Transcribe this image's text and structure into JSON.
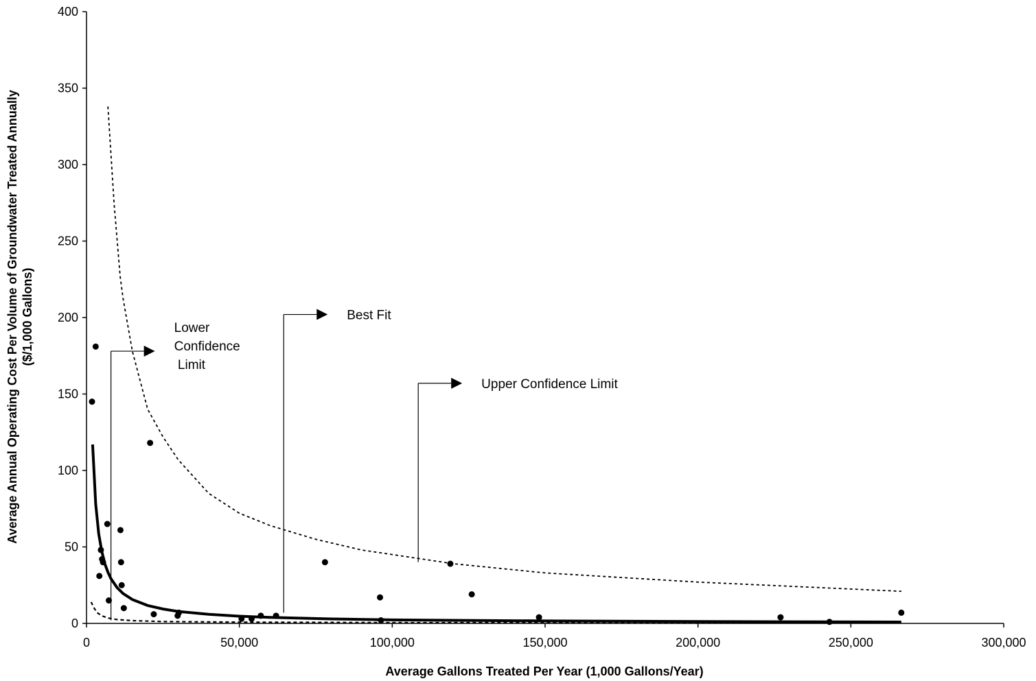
{
  "chart_data": {
    "type": "scatter",
    "title": "",
    "xlabel": "Average Gallons Treated Per Year (1,000 Gallons/Year)",
    "ylabel_line1": "Average Annual Operating Cost Per Volume of Groundwater Treated Annually",
    "ylabel_line2": "($/1,000 Gallons)",
    "xlim": [
      0,
      300000
    ],
    "ylim": [
      0,
      400
    ],
    "x_ticks": [
      0,
      50000,
      100000,
      150000,
      200000,
      250000,
      300000
    ],
    "x_tick_labels": [
      "0",
      "50,000",
      "100,000",
      "150,000",
      "200,000",
      "250,000",
      "300,000"
    ],
    "y_ticks": [
      0,
      50,
      100,
      150,
      200,
      250,
      300,
      350,
      400
    ],
    "y_tick_labels": [
      "0",
      "50",
      "100",
      "150",
      "200",
      "250",
      "300",
      "350",
      "400"
    ],
    "grid": false,
    "legend": "none",
    "points": [
      {
        "x": 1800,
        "y": 145
      },
      {
        "x": 3000,
        "y": 181
      },
      {
        "x": 4200,
        "y": 31
      },
      {
        "x": 4700,
        "y": 48
      },
      {
        "x": 5100,
        "y": 42
      },
      {
        "x": 5400,
        "y": 40
      },
      {
        "x": 6800,
        "y": 65
      },
      {
        "x": 7300,
        "y": 15
      },
      {
        "x": 11100,
        "y": 61
      },
      {
        "x": 11300,
        "y": 40
      },
      {
        "x": 11500,
        "y": 25
      },
      {
        "x": 12200,
        "y": 10
      },
      {
        "x": 20800,
        "y": 118
      },
      {
        "x": 22000,
        "y": 6
      },
      {
        "x": 29800,
        "y": 5
      },
      {
        "x": 30200,
        "y": 7
      },
      {
        "x": 50700,
        "y": 3
      },
      {
        "x": 54000,
        "y": 3
      },
      {
        "x": 57000,
        "y": 5
      },
      {
        "x": 62000,
        "y": 5
      },
      {
        "x": 78000,
        "y": 40
      },
      {
        "x": 96000,
        "y": 17
      },
      {
        "x": 96300,
        "y": 2
      },
      {
        "x": 119000,
        "y": 39
      },
      {
        "x": 126000,
        "y": 19
      },
      {
        "x": 148000,
        "y": 4
      },
      {
        "x": 227000,
        "y": 4
      },
      {
        "x": 243000,
        "y": 1
      },
      {
        "x": 266500,
        "y": 7
      }
    ],
    "curves": [
      {
        "style": "solid",
        "points": [
          [
            2000,
            117
          ],
          [
            3000,
            78
          ],
          [
            4000,
            58.5
          ],
          [
            5000,
            47
          ],
          [
            6000,
            39
          ],
          [
            7000,
            33.5
          ],
          [
            8000,
            29.3
          ],
          [
            10000,
            23.4
          ],
          [
            12000,
            19.5
          ],
          [
            15000,
            15.6
          ],
          [
            20000,
            11.7
          ],
          [
            25000,
            9.4
          ],
          [
            30000,
            7.8
          ],
          [
            40000,
            5.9
          ],
          [
            50000,
            4.7
          ],
          [
            60000,
            3.9
          ],
          [
            80000,
            2.9
          ],
          [
            100000,
            2.3
          ],
          [
            150000,
            1.6
          ],
          [
            200000,
            1.2
          ],
          [
            266500,
            0.9
          ]
        ]
      },
      {
        "style": "dotted",
        "points": [
          [
            7000,
            338
          ],
          [
            9000,
            275
          ],
          [
            11000,
            227
          ],
          [
            12000,
            212
          ],
          [
            15000,
            178
          ],
          [
            20000,
            140
          ],
          [
            25000,
            122
          ],
          [
            30000,
            107
          ],
          [
            40000,
            85
          ],
          [
            50000,
            72
          ],
          [
            60000,
            64
          ],
          [
            75000,
            55
          ],
          [
            90000,
            48
          ],
          [
            100000,
            45
          ],
          [
            120000,
            39
          ],
          [
            150000,
            33
          ],
          [
            200000,
            27
          ],
          [
            266500,
            21
          ]
        ]
      },
      {
        "style": "dashed",
        "points": [
          [
            1500,
            14
          ],
          [
            2500,
            10
          ],
          [
            3500,
            7
          ],
          [
            5000,
            5
          ],
          [
            7000,
            3.5
          ],
          [
            10000,
            2.5
          ],
          [
            15000,
            1.8
          ],
          [
            25000,
            1.2
          ],
          [
            50000,
            0.8
          ],
          [
            100000,
            0.5
          ],
          [
            266500,
            0.3
          ]
        ]
      }
    ],
    "annotations": [
      {
        "lines": [
          "Lower",
          "Confidence",
          " Limit"
        ],
        "anchor_x": 8000,
        "anchor_y": 2,
        "turn_y": 178
      },
      {
        "lines": [
          "Best Fit"
        ],
        "anchor_x": 64500,
        "anchor_y": 7,
        "turn_y": 202
      },
      {
        "lines": [
          "Upper Confidence Limit"
        ],
        "anchor_x": 108500,
        "anchor_y": 40,
        "turn_y": 157
      }
    ]
  }
}
